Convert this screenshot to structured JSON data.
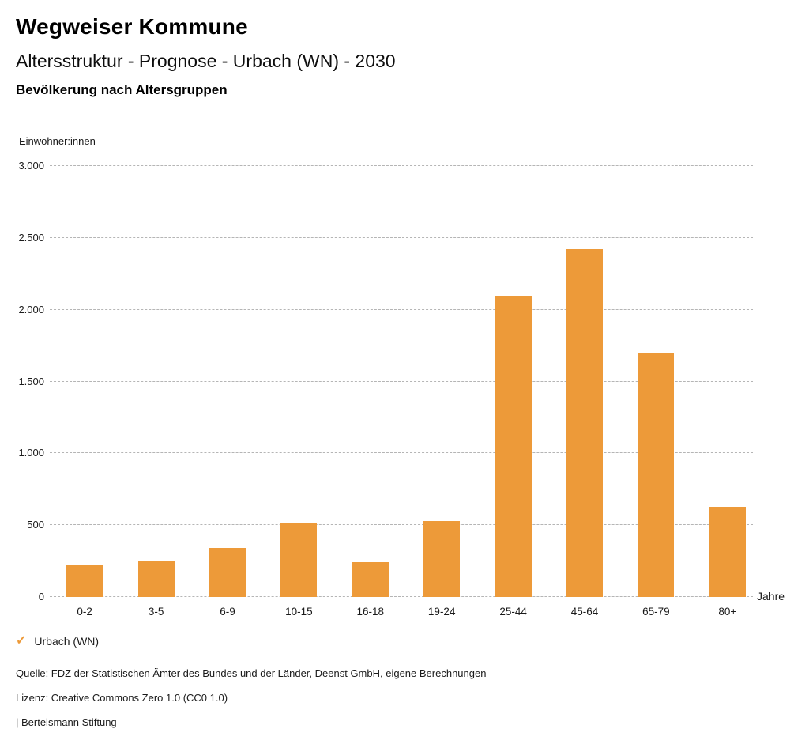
{
  "header": {
    "title": "Wegweiser Kommune",
    "subtitle": "Altersstruktur - Prognose - Urbach (WN) - 2030",
    "chart_heading": "Bevölkerung nach Altersgruppen"
  },
  "chart_data": {
    "type": "bar",
    "title": "Bevölkerung nach Altersgruppen",
    "ylabel": "Einwohner:innen",
    "xlabel": "Jahre",
    "categories": [
      "0-2",
      "3-5",
      "6-9",
      "10-15",
      "16-18",
      "19-24",
      "25-44",
      "45-64",
      "65-79",
      "80+"
    ],
    "series": [
      {
        "name": "Urbach (WN)",
        "values": [
          225,
          255,
          340,
          510,
          245,
          530,
          2100,
          2420,
          1700,
          630
        ]
      }
    ],
    "ylim": [
      0,
      3000
    ],
    "ytick_step": 500,
    "ytick_labels": [
      "0",
      "500",
      "1.000",
      "1.500",
      "2.000",
      "2.500",
      "3.000"
    ],
    "grid": "horizontal-dashed",
    "legend_position": "bottom-left",
    "bar_color": "#ED9A39"
  },
  "legend": {
    "check_icon": "✓",
    "label": "Urbach (WN)"
  },
  "footer": {
    "source": "Quelle: FDZ der Statistischen Ämter des Bundes und der Länder, Deenst GmbH, eigene Berechnungen",
    "license": "Lizenz: Creative Commons Zero 1.0 (CC0 1.0)",
    "attribution": "| Bertelsmann Stiftung"
  },
  "colors": {
    "accent": "#ED9A39",
    "grid": "#B5B5B5",
    "text": "#1A1A1A"
  }
}
